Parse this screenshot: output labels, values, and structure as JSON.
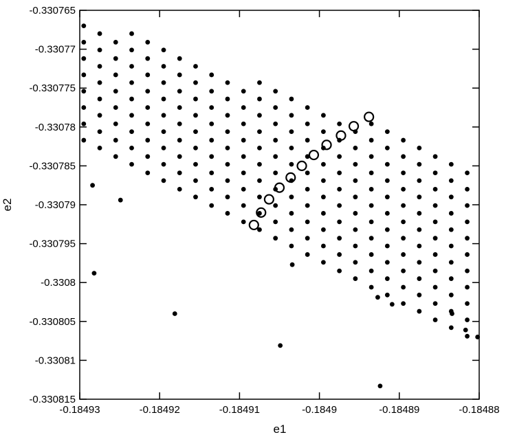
{
  "chart_data": {
    "type": "scatter",
    "x_label": "e1",
    "y_label": "e2",
    "xlim": [
      -0.18493,
      -0.18488
    ],
    "xticks": [
      -0.18493,
      -0.18492,
      -0.18491,
      -0.1849,
      -0.18489,
      -0.18488
    ],
    "ylim": [
      -0.330815,
      -0.330765
    ],
    "yticks": [
      -0.330815,
      -0.33081,
      -0.330805,
      -0.3308,
      -0.330795,
      -0.33079,
      -0.330785,
      -0.33078,
      -0.330775,
      -0.33077,
      -0.330765
    ],
    "series": [
      {
        "color": "#000000",
        "marker": "filled",
        "x": [
          -0.1849295,
          -0.1849295,
          -0.1849295,
          -0.1849295,
          -0.1849295,
          -0.1849295,
          -0.1849295,
          -0.1849295,
          -0.1849275,
          -0.1849275,
          -0.1849275,
          -0.1849275,
          -0.1849275,
          -0.1849275,
          -0.1849275,
          -0.1849275,
          -0.1849255,
          -0.1849255,
          -0.1849255,
          -0.1849255,
          -0.1849255,
          -0.1849255,
          -0.1849255,
          -0.1849255,
          -0.1849235,
          -0.1849235,
          -0.1849235,
          -0.1849235,
          -0.1849235,
          -0.1849235,
          -0.1849235,
          -0.1849235,
          -0.1849235,
          -0.1849215,
          -0.1849215,
          -0.1849215,
          -0.1849215,
          -0.1849215,
          -0.1849215,
          -0.1849215,
          -0.1849215,
          -0.1849215,
          -0.1849195,
          -0.1849195,
          -0.1849195,
          -0.1849195,
          -0.1849195,
          -0.1849195,
          -0.1849195,
          -0.1849195,
          -0.1849195,
          -0.1849175,
          -0.1849175,
          -0.1849175,
          -0.1849175,
          -0.1849175,
          -0.1849175,
          -0.1849175,
          -0.1849175,
          -0.1849175,
          -0.1849155,
          -0.1849155,
          -0.1849155,
          -0.1849155,
          -0.1849155,
          -0.1849155,
          -0.1849155,
          -0.1849155,
          -0.1849155,
          -0.1849135,
          -0.1849135,
          -0.1849135,
          -0.1849135,
          -0.1849135,
          -0.1849135,
          -0.1849135,
          -0.1849135,
          -0.1849135,
          -0.1849115,
          -0.1849115,
          -0.1849115,
          -0.1849115,
          -0.1849115,
          -0.1849115,
          -0.1849115,
          -0.1849115,
          -0.1849115,
          -0.1849095,
          -0.1849095,
          -0.1849095,
          -0.1849095,
          -0.1849095,
          -0.1849095,
          -0.1849095,
          -0.1849095,
          -0.1849095,
          -0.1849075,
          -0.1849075,
          -0.1849075,
          -0.1849075,
          -0.1849075,
          -0.1849075,
          -0.1849075,
          -0.1849075,
          -0.1849075,
          -0.1849075,
          -0.1849055,
          -0.1849055,
          -0.1849055,
          -0.1849055,
          -0.1849055,
          -0.1849055,
          -0.1849055,
          -0.1849055,
          -0.1849055,
          -0.1849055,
          -0.1849035,
          -0.1849035,
          -0.1849035,
          -0.1849035,
          -0.1849035,
          -0.1849035,
          -0.1849035,
          -0.1849035,
          -0.1849035,
          -0.1849035,
          -0.1849015,
          -0.1849015,
          -0.1849015,
          -0.1849015,
          -0.1849015,
          -0.1849015,
          -0.1849015,
          -0.1849015,
          -0.1849015,
          -0.1849015,
          -0.1848995,
          -0.1848995,
          -0.1848995,
          -0.1848995,
          -0.1848995,
          -0.1848995,
          -0.1848995,
          -0.1848995,
          -0.1848995,
          -0.1848995,
          -0.1848975,
          -0.1848975,
          -0.1848975,
          -0.1848975,
          -0.1848975,
          -0.1848975,
          -0.1848975,
          -0.1848975,
          -0.1848975,
          -0.1848975,
          -0.1848955,
          -0.1848955,
          -0.1848955,
          -0.1848955,
          -0.1848955,
          -0.1848955,
          -0.1848955,
          -0.1848955,
          -0.1848955,
          -0.1848955,
          -0.1848935,
          -0.1848935,
          -0.1848935,
          -0.1848935,
          -0.1848935,
          -0.1848935,
          -0.1848935,
          -0.1848935,
          -0.1848935,
          -0.1848935,
          -0.1848935,
          -0.1848915,
          -0.1848915,
          -0.1848915,
          -0.1848915,
          -0.1848915,
          -0.1848915,
          -0.1848915,
          -0.1848915,
          -0.1848915,
          -0.1848915,
          -0.1848915,
          -0.1848895,
          -0.1848895,
          -0.1848895,
          -0.1848895,
          -0.1848895,
          -0.1848895,
          -0.1848895,
          -0.1848895,
          -0.1848895,
          -0.1848895,
          -0.1848895,
          -0.1848875,
          -0.1848875,
          -0.1848875,
          -0.1848875,
          -0.1848875,
          -0.1848875,
          -0.1848875,
          -0.1848875,
          -0.1848875,
          -0.1848875,
          -0.1848875,
          -0.1848855,
          -0.1848855,
          -0.1848855,
          -0.1848855,
          -0.1848855,
          -0.1848855,
          -0.1848855,
          -0.1848855,
          -0.1848855,
          -0.1848855,
          -0.1848855,
          -0.1848835,
          -0.1848835,
          -0.1848835,
          -0.1848835,
          -0.1848835,
          -0.1848835,
          -0.1848835,
          -0.1848835,
          -0.1848835,
          -0.1848835,
          -0.1848835,
          -0.1848815,
          -0.1848815,
          -0.1848815,
          -0.1848815,
          -0.1848815,
          -0.1848815,
          -0.1848815,
          -0.1848815,
          -0.1848815,
          -0.1848815,
          -0.1848815,
          -0.1849282,
          -0.1849181,
          -0.1849049,
          -0.1848924,
          -0.1848927,
          -0.1848909,
          -0.1848834,
          -0.1848817,
          -0.1848802,
          -0.1849034,
          -0.1849284,
          -0.1849249
        ],
        "values": [
          -0.330767,
          -0.3307691,
          -0.3307712,
          -0.3307733,
          -0.3307754,
          -0.3307775,
          -0.3307796,
          -0.3307817,
          -0.330768,
          -0.3307701,
          -0.3307722,
          -0.3307743,
          -0.3307764,
          -0.3307785,
          -0.3307806,
          -0.3307827,
          -0.3307691,
          -0.3307712,
          -0.3307733,
          -0.3307754,
          -0.3307775,
          -0.3307796,
          -0.3307817,
          -0.3307838,
          -0.330768,
          -0.3307701,
          -0.3307722,
          -0.3307743,
          -0.3307764,
          -0.3307785,
          -0.3307806,
          -0.3307827,
          -0.3307848,
          -0.3307691,
          -0.3307712,
          -0.3307733,
          -0.3307754,
          -0.3307775,
          -0.3307796,
          -0.3307817,
          -0.3307838,
          -0.3307859,
          -0.3307701,
          -0.3307722,
          -0.3307743,
          -0.3307764,
          -0.3307785,
          -0.3307806,
          -0.3307827,
          -0.3307848,
          -0.3307869,
          -0.3307712,
          -0.3307733,
          -0.3307754,
          -0.3307775,
          -0.3307796,
          -0.3307817,
          -0.3307838,
          -0.3307859,
          -0.330788,
          -0.3307722,
          -0.3307743,
          -0.3307764,
          -0.3307785,
          -0.3307806,
          -0.3307827,
          -0.3307848,
          -0.3307869,
          -0.330789,
          -0.3307733,
          -0.3307754,
          -0.3307775,
          -0.3307796,
          -0.3307817,
          -0.3307838,
          -0.3307859,
          -0.330788,
          -0.3307901,
          -0.3307743,
          -0.3307764,
          -0.3307785,
          -0.3307806,
          -0.3307827,
          -0.3307848,
          -0.3307869,
          -0.330789,
          -0.3307911,
          -0.3307754,
          -0.3307775,
          -0.3307796,
          -0.3307817,
          -0.3307838,
          -0.3307859,
          -0.330788,
          -0.3307901,
          -0.3307922,
          -0.3307743,
          -0.3307764,
          -0.3307785,
          -0.3307806,
          -0.3307827,
          -0.3307848,
          -0.3307869,
          -0.330789,
          -0.3307911,
          -0.3307932,
          -0.3307754,
          -0.3307775,
          -0.3307796,
          -0.3307817,
          -0.3307838,
          -0.3307859,
          -0.330788,
          -0.3307901,
          -0.3307922,
          -0.3307943,
          -0.3307764,
          -0.3307785,
          -0.3307806,
          -0.3307827,
          -0.3307848,
          -0.3307869,
          -0.330789,
          -0.3307911,
          -0.3307932,
          -0.3307953,
          -0.3307775,
          -0.3307796,
          -0.3307817,
          -0.3307838,
          -0.3307859,
          -0.330788,
          -0.3307901,
          -0.3307922,
          -0.3307943,
          -0.3307964,
          -0.3307785,
          -0.3307806,
          -0.3307827,
          -0.3307848,
          -0.3307869,
          -0.330789,
          -0.3307911,
          -0.3307932,
          -0.3307953,
          -0.3307974,
          -0.3307796,
          -0.3307817,
          -0.3307838,
          -0.3307859,
          -0.330788,
          -0.3307901,
          -0.3307922,
          -0.3307943,
          -0.3307964,
          -0.3307985,
          -0.3307806,
          -0.3307827,
          -0.3307848,
          -0.3307869,
          -0.330789,
          -0.3307911,
          -0.3307932,
          -0.3307953,
          -0.3307974,
          -0.3307995,
          -0.3307796,
          -0.3307817,
          -0.3307838,
          -0.3307859,
          -0.330788,
          -0.3307901,
          -0.3307922,
          -0.3307943,
          -0.3307964,
          -0.3307985,
          -0.3308006,
          -0.3307806,
          -0.3307827,
          -0.3307848,
          -0.3307869,
          -0.330789,
          -0.3307911,
          -0.3307932,
          -0.3307953,
          -0.3307974,
          -0.3307995,
          -0.3308016,
          -0.3307817,
          -0.3307838,
          -0.3307859,
          -0.330788,
          -0.3307901,
          -0.3307922,
          -0.3307943,
          -0.3307964,
          -0.3307985,
          -0.3308006,
          -0.3308027,
          -0.3307827,
          -0.3307848,
          -0.3307869,
          -0.330789,
          -0.3307911,
          -0.3307932,
          -0.3307953,
          -0.3307974,
          -0.3307995,
          -0.3308016,
          -0.3308037,
          -0.3307838,
          -0.3307859,
          -0.330788,
          -0.3307901,
          -0.3307922,
          -0.3307943,
          -0.3307964,
          -0.3307985,
          -0.3308006,
          -0.3308027,
          -0.3308048,
          -0.3307848,
          -0.3307869,
          -0.330789,
          -0.3307911,
          -0.3307932,
          -0.3307953,
          -0.3307974,
          -0.3307995,
          -0.3308016,
          -0.3308037,
          -0.3308058,
          -0.3307859,
          -0.330788,
          -0.3307901,
          -0.3307922,
          -0.3307943,
          -0.3307964,
          -0.3307985,
          -0.3308006,
          -0.3308027,
          -0.3308048,
          -0.3308069,
          -0.3307988,
          -0.330804,
          -0.3308081,
          -0.3308133,
          -0.3308019,
          -0.3308028,
          -0.330804,
          -0.3308061,
          -0.330807,
          -0.3307977,
          -0.3307875,
          -0.3307894
        ]
      },
      {
        "color": "#000000",
        "marker": "open",
        "x": [
          -0.1849082,
          -0.1849073,
          -0.1849063,
          -0.184905,
          -0.1849036,
          -0.1849022,
          -0.1849007,
          -0.1848991,
          -0.1848973,
          -0.1848957,
          -0.1848938
        ],
        "values": [
          -0.3307926,
          -0.330791,
          -0.3307893,
          -0.3307878,
          -0.3307865,
          -0.330785,
          -0.3307836,
          -0.3307823,
          -0.3307811,
          -0.3307799,
          -0.3307787
        ]
      }
    ]
  }
}
